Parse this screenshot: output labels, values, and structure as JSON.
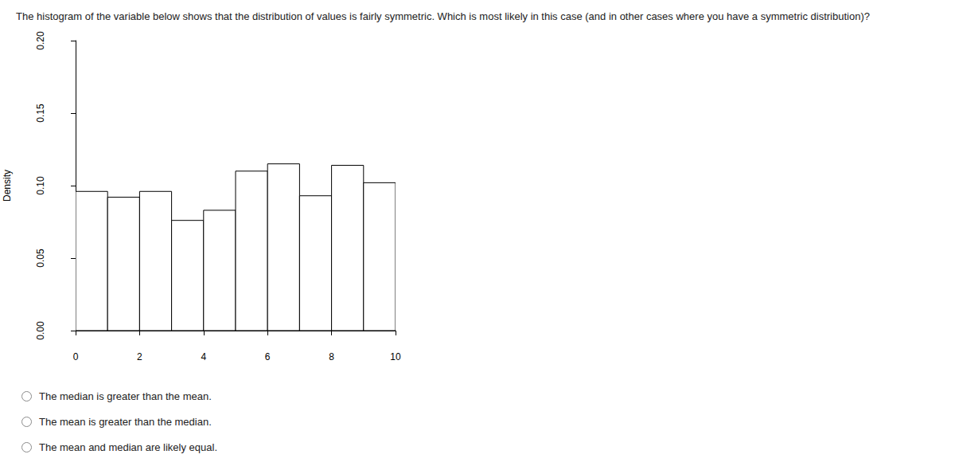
{
  "question": "The histogram of the variable below shows that the distribution of values is fairly symmetric.  Which is most likely in this case (and in other cases where you have a symmetric distribution)?",
  "options": [
    "The median is greater than the mean.",
    "The mean is greater than the median.",
    "The mean and median are likely equal."
  ],
  "chart_data": {
    "type": "histogram",
    "bins": [
      0,
      1,
      2,
      3,
      4,
      5,
      6,
      7,
      8,
      9,
      10
    ],
    "values": [
      0.096,
      0.092,
      0.096,
      0.076,
      0.083,
      0.11,
      0.115,
      0.093,
      0.114,
      0.102
    ],
    "ylabel": "Density",
    "color": "#ffffff",
    "grid": false,
    "xlim": [
      0,
      10
    ],
    "xticks": [
      0,
      2,
      4,
      6,
      8,
      10
    ],
    "ylim": [
      0,
      0.2
    ],
    "yticks": [
      {
        "value": 0,
        "label": "0.00"
      },
      {
        "value": 0.05,
        "label": "0.05"
      },
      {
        "value": 0.1,
        "label": "0.10"
      },
      {
        "value": 0.15,
        "label": "0.15"
      },
      {
        "value": 0.2,
        "label": "0.20"
      }
    ]
  }
}
